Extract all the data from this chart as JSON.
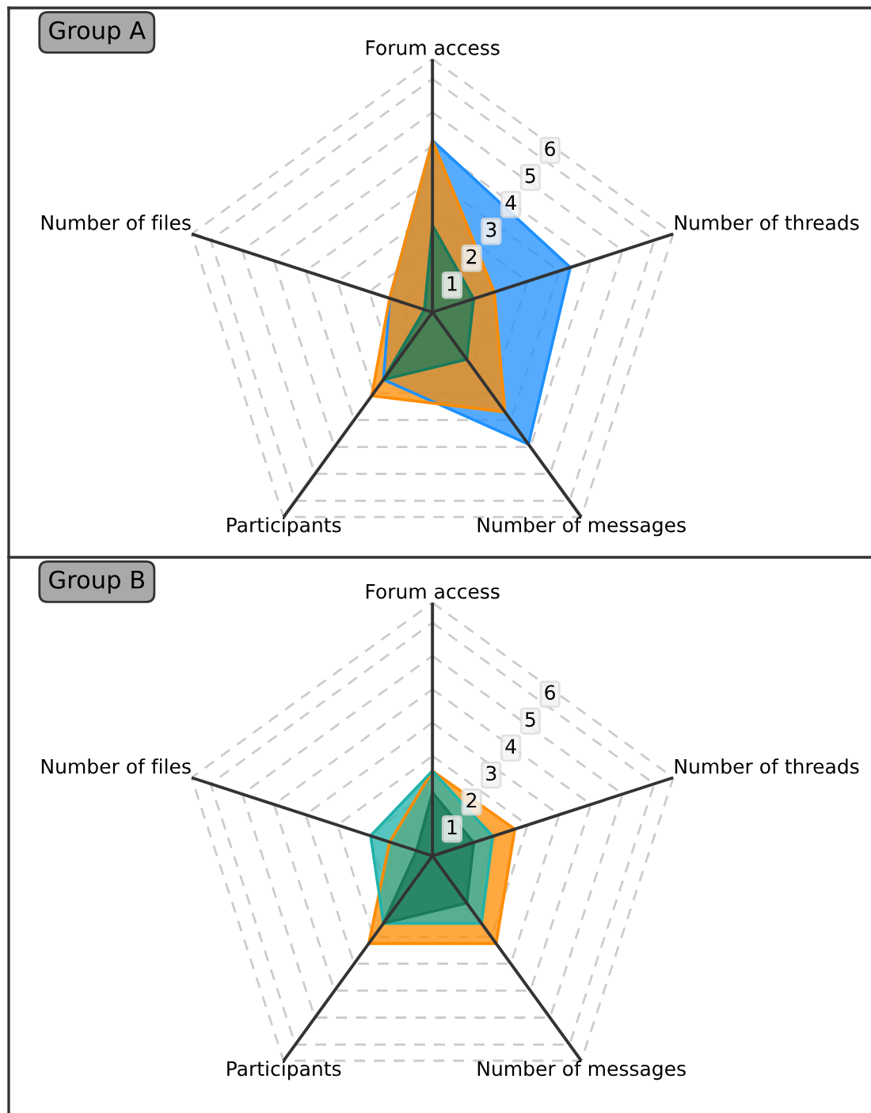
{
  "chart_data": [
    {
      "type": "radar",
      "title": "Group A",
      "categories": [
        "Forum access",
        "Number of threads",
        "Number of messages",
        "Participants",
        "Number of files"
      ],
      "ylim": [
        0,
        7.6
      ],
      "yticks": [
        1,
        2,
        3,
        4,
        5,
        6
      ],
      "grid": true,
      "series": [
        {
          "color": "#1e90ff",
          "values": [
            5.15,
            4.35,
            4.9,
            2.5,
            1.35
          ]
        },
        {
          "color": "#ff8c00",
          "values": [
            5.15,
            1.95,
            3.7,
            3.1,
            1.35
          ]
        },
        {
          "color": "#1a7a5a",
          "values": [
            2.6,
            1.3,
            1.75,
            2.5,
            0.25
          ]
        }
      ]
    },
    {
      "type": "radar",
      "title": "Group B",
      "categories": [
        "Forum access",
        "Number of threads",
        "Number of messages",
        "Participants",
        "Number of files"
      ],
      "ylim": [
        0,
        7.6
      ],
      "yticks": [
        1,
        2,
        3,
        4,
        5,
        6
      ],
      "grid": true,
      "series": [
        {
          "color": "#ff8c00",
          "values": [
            2.55,
            2.6,
            3.25,
            3.25,
            1.35
          ]
        },
        {
          "color": "#20b2aa",
          "values": [
            2.55,
            1.9,
            2.5,
            2.5,
            1.95
          ]
        },
        {
          "color": "#1a7a5a",
          "values": [
            1.9,
            1.3,
            1.75,
            2.5,
            0.5
          ]
        }
      ]
    }
  ]
}
